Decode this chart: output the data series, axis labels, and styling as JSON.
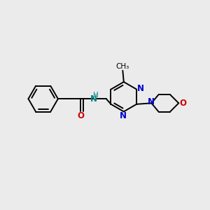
{
  "bg_color": "#ebebeb",
  "bond_color": "#000000",
  "N_color": "#0000cc",
  "O_color": "#cc0000",
  "NH_color": "#008080",
  "lw": 1.4,
  "fs": 8.5,
  "figsize": [
    3.0,
    3.0
  ],
  "dpi": 100,
  "xlim": [
    0,
    10
  ],
  "ylim": [
    0,
    10
  ]
}
